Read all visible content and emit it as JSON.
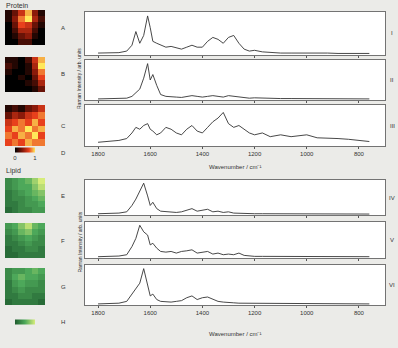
{
  "chart_data": [
    {
      "type": "heatmap",
      "title": "Protein",
      "maps": [
        {
          "label": "A",
          "cells": [
            [
              0.1,
              0.3,
              0.6,
              0.9,
              0.4,
              0.1
            ],
            [
              0.1,
              0.4,
              0.8,
              1.0,
              0.5,
              0.2
            ],
            [
              0.0,
              0.3,
              0.7,
              0.6,
              0.3,
              0.1
            ],
            [
              0.0,
              0.2,
              0.5,
              0.5,
              0.2,
              0.0
            ],
            [
              0.0,
              0.1,
              0.3,
              0.4,
              0.1,
              0.0
            ],
            [
              0.0,
              0.0,
              0.2,
              0.2,
              0.0,
              0.0
            ]
          ]
        },
        {
          "label": "B",
          "cells": [
            [
              0.1,
              0.1,
              0.0,
              0.2,
              0.6,
              0.9
            ],
            [
              0.2,
              0.1,
              0.0,
              0.1,
              0.5,
              1.0
            ],
            [
              0.1,
              0.0,
              0.0,
              0.1,
              0.4,
              0.8
            ],
            [
              0.0,
              0.0,
              0.1,
              0.0,
              0.3,
              0.7
            ],
            [
              0.0,
              0.0,
              0.0,
              0.1,
              0.2,
              0.5
            ],
            [
              0.0,
              0.0,
              0.0,
              0.0,
              0.1,
              0.3
            ]
          ]
        },
        {
          "label": "C",
          "cells": [
            [
              0.1,
              0.2,
              0.1,
              0.3,
              0.4,
              0.6
            ],
            [
              0.3,
              0.5,
              0.4,
              0.6,
              0.7,
              0.8
            ],
            [
              0.6,
              0.7,
              0.8,
              0.7,
              0.9,
              0.7
            ],
            [
              0.7,
              0.9,
              0.8,
              1.0,
              0.8,
              0.9
            ],
            [
              0.8,
              0.7,
              0.9,
              0.8,
              1.0,
              0.7
            ],
            [
              0.7,
              0.8,
              0.7,
              0.9,
              0.8,
              0.8
            ]
          ]
        }
      ],
      "colorbar": {
        "label": "D",
        "range": [
          0,
          1
        ],
        "ticks": [
          0,
          1
        ]
      }
    },
    {
      "type": "line",
      "x_label": "Wavenumber / cm⁻¹",
      "y_label": "Raman Intensity / arb. units",
      "xlim": [
        1850,
        700
      ],
      "ylim": [
        0,
        1.1
      ],
      "xticks": [
        1800,
        1600,
        1400,
        1200,
        1000,
        800
      ],
      "tick_labels": "x",
      "x": [
        1800,
        1760,
        1720,
        1690,
        1670,
        1655,
        1640,
        1625,
        1610,
        1600,
        1590,
        1575,
        1560,
        1540,
        1520,
        1500,
        1480,
        1460,
        1440,
        1420,
        1400,
        1380,
        1360,
        1340,
        1320,
        1300,
        1280,
        1260,
        1240,
        1220,
        1200,
        1170,
        1140,
        1100,
        1060,
        1030,
        1000,
        960,
        920,
        880,
        840,
        800,
        760
      ],
      "series": [
        {
          "name": "I",
          "color": "#333333",
          "values": [
            0.05,
            0.05,
            0.06,
            0.1,
            0.25,
            0.6,
            0.3,
            0.5,
            1.0,
            0.7,
            0.35,
            0.3,
            0.25,
            0.2,
            0.22,
            0.18,
            0.15,
            0.2,
            0.25,
            0.2,
            0.2,
            0.35,
            0.45,
            0.4,
            0.3,
            0.45,
            0.5,
            0.3,
            0.15,
            0.1,
            0.12,
            0.08,
            0.06,
            0.05,
            0.05,
            0.05,
            0.06,
            0.05,
            0.05,
            0.04,
            0.04,
            0.04,
            0.04
          ]
        },
        {
          "name": "II",
          "color": "#333333",
          "values": [
            0.03,
            0.03,
            0.04,
            0.05,
            0.1,
            0.2,
            0.3,
            0.6,
            1.0,
            0.55,
            0.7,
            0.4,
            0.15,
            0.1,
            0.1,
            0.08,
            0.07,
            0.1,
            0.12,
            0.1,
            0.08,
            0.1,
            0.12,
            0.1,
            0.08,
            0.12,
            0.1,
            0.08,
            0.06,
            0.05,
            0.06,
            0.05,
            0.04,
            0.04,
            0.04,
            0.04,
            0.05,
            0.04,
            0.04,
            0.03,
            0.03,
            0.03,
            0.03
          ]
        },
        {
          "name": "III",
          "color": "#333333",
          "values": [
            0.1,
            0.12,
            0.15,
            0.2,
            0.35,
            0.5,
            0.45,
            0.55,
            0.6,
            0.45,
            0.4,
            0.3,
            0.35,
            0.5,
            0.45,
            0.35,
            0.3,
            0.45,
            0.55,
            0.4,
            0.35,
            0.5,
            0.65,
            0.75,
            0.9,
            0.6,
            0.5,
            0.55,
            0.45,
            0.35,
            0.3,
            0.35,
            0.25,
            0.3,
            0.25,
            0.28,
            0.3,
            0.22,
            0.2,
            0.2,
            0.18,
            0.15,
            0.12
          ]
        }
      ]
    },
    {
      "type": "heatmap",
      "title": "Lipid",
      "maps": [
        {
          "label": "E",
          "cells": [
            [
              0.3,
              0.4,
              0.5,
              0.6,
              0.8,
              1.0
            ],
            [
              0.3,
              0.4,
              0.5,
              0.5,
              0.7,
              0.9
            ],
            [
              0.2,
              0.3,
              0.4,
              0.5,
              0.6,
              0.7
            ],
            [
              0.2,
              0.3,
              0.3,
              0.4,
              0.5,
              0.6
            ],
            [
              0.2,
              0.2,
              0.3,
              0.4,
              0.4,
              0.5
            ],
            [
              0.1,
              0.2,
              0.3,
              0.3,
              0.4,
              0.4
            ]
          ]
        },
        {
          "label": "F",
          "cells": [
            [
              0.4,
              0.5,
              0.7,
              0.9,
              0.6,
              0.5
            ],
            [
              0.3,
              0.4,
              0.6,
              0.7,
              0.5,
              0.4
            ],
            [
              0.2,
              0.3,
              0.4,
              0.5,
              0.4,
              0.3
            ],
            [
              0.2,
              0.2,
              0.3,
              0.4,
              0.3,
              0.3
            ],
            [
              0.1,
              0.2,
              0.2,
              0.3,
              0.3,
              0.2
            ],
            [
              0.1,
              0.1,
              0.2,
              0.2,
              0.2,
              0.2
            ]
          ]
        },
        {
          "label": "G",
          "cells": [
            [
              0.3,
              0.4,
              0.4,
              0.5,
              0.6,
              0.5
            ],
            [
              0.3,
              0.5,
              0.6,
              0.5,
              0.5,
              0.4
            ],
            [
              0.2,
              0.4,
              0.5,
              0.4,
              0.4,
              0.3
            ],
            [
              0.2,
              0.3,
              0.4,
              0.3,
              0.3,
              0.3
            ],
            [
              0.2,
              0.2,
              0.3,
              0.3,
              0.2,
              0.2
            ],
            [
              0.1,
              0.2,
              0.2,
              0.2,
              0.2,
              0.1
            ]
          ]
        }
      ],
      "colorbar": {
        "label": "H",
        "range": [
          0,
          1
        ]
      }
    },
    {
      "type": "line",
      "x_label": "Wavenumber / cm⁻¹",
      "y_label": "Raman Intensity / arb. units",
      "xlim": [
        1850,
        700
      ],
      "ylim": [
        0,
        1.1
      ],
      "xticks": [
        1800,
        1600,
        1400,
        1200,
        1000,
        800
      ],
      "tick_labels": "x",
      "x": [
        1800,
        1760,
        1720,
        1690,
        1670,
        1655,
        1640,
        1625,
        1610,
        1600,
        1590,
        1575,
        1560,
        1540,
        1520,
        1500,
        1480,
        1460,
        1440,
        1420,
        1400,
        1380,
        1360,
        1340,
        1320,
        1300,
        1280,
        1260,
        1240,
        1220,
        1200,
        1170,
        1140,
        1100,
        1060,
        1030,
        1000,
        960,
        920,
        880,
        840,
        800,
        760
      ],
      "series": [
        {
          "name": "IV",
          "color": "#333333",
          "values": [
            0.04,
            0.05,
            0.06,
            0.1,
            0.3,
            0.5,
            0.75,
            1.0,
            0.6,
            0.3,
            0.4,
            0.2,
            0.12,
            0.1,
            0.08,
            0.08,
            0.1,
            0.15,
            0.2,
            0.12,
            0.15,
            0.18,
            0.1,
            0.12,
            0.08,
            0.1,
            0.06,
            0.05,
            0.05,
            0.04,
            0.04,
            0.04,
            0.04,
            0.03,
            0.03,
            0.03,
            0.03,
            0.03,
            0.03,
            0.03,
            0.03,
            0.03,
            0.03
          ]
        },
        {
          "name": "V",
          "color": "#333333",
          "values": [
            0.04,
            0.05,
            0.06,
            0.1,
            0.35,
            0.6,
            1.0,
            0.8,
            0.7,
            0.4,
            0.45,
            0.3,
            0.2,
            0.18,
            0.2,
            0.15,
            0.2,
            0.22,
            0.25,
            0.15,
            0.18,
            0.2,
            0.12,
            0.15,
            0.1,
            0.12,
            0.1,
            0.15,
            0.08,
            0.06,
            0.05,
            0.05,
            0.05,
            0.04,
            0.04,
            0.04,
            0.04,
            0.04,
            0.04,
            0.04,
            0.04,
            0.04,
            0.04
          ]
        },
        {
          "name": "VI",
          "color": "#333333",
          "values": [
            0.03,
            0.04,
            0.05,
            0.1,
            0.3,
            0.45,
            0.6,
            1.0,
            0.5,
            0.25,
            0.3,
            0.15,
            0.1,
            0.08,
            0.08,
            0.1,
            0.12,
            0.2,
            0.25,
            0.15,
            0.2,
            0.22,
            0.15,
            0.1,
            0.08,
            0.06,
            0.06,
            0.05,
            0.05,
            0.04,
            0.04,
            0.04,
            0.04,
            0.04,
            0.04,
            0.04,
            0.04,
            0.04,
            0.04,
            0.03,
            0.03,
            0.03,
            0.03
          ]
        }
      ]
    }
  ]
}
